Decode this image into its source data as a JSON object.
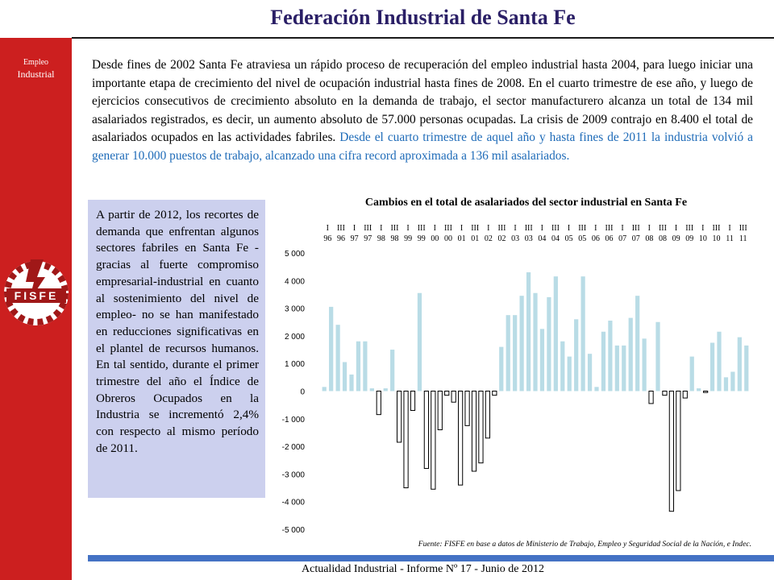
{
  "header": {
    "title": "Federación Industrial de Santa Fe"
  },
  "sidebar": {
    "label_line1": "Empleo",
    "label_line2": "Industrial",
    "logo_text": "FISFE",
    "logo_icon": "fisfe-logo-icon"
  },
  "intro": {
    "text_black": "Desde fines de 2002 Santa Fe atraviesa un rápido proceso de recuperación del empleo industrial hasta 2004, para luego iniciar una importante etapa de crecimiento del nivel de ocupación industrial hasta fines de 2008. En el cuarto trimestre de ese año, y luego de ejercicios consecutivos de crecimiento absoluto en la demanda de trabajo, el sector manufacturero alcanza un total de 134 mil asalariados registrados, es decir, un aumento absoluto de 57.000 personas ocupadas. La crisis de 2009 contrajo en 8.400 el total de asalariados ocupados en las actividades fabriles. ",
    "text_highlight": "Desde el cuarto trimestre de aquel año y hasta fines de 2011 la industria volvió a generar 10.000 puestos de trabajo, alcanzado una cifra record aproximada a 136 mil asalariados."
  },
  "sidebox": {
    "text": "A partir de 2012, los recortes de demanda que enfrentan algunos sectores fabriles en Santa Fe -gracias al fuerte compromiso empresarial-industrial en cuanto al sostenimiento del nivel de empleo- no se han manifestado en reducciones significativas en el plantel de recursos humanos. En tal sentido, durante el primer trimestre del año el Índice de Obreros Ocupados en la Industria se incrementó 2,4% con respecto al mismo período de 2011."
  },
  "footer": {
    "text": "Actualidad Industrial - Informe Nº 17 - Junio de 2012"
  },
  "colors": {
    "sidebar": "#cc1f1f",
    "title": "#2a1f66",
    "highlight": "#1e6bb8",
    "positive_bar": "#b9dce6",
    "box": "#ccd0ee",
    "footer_bar": "#4472c4"
  },
  "chart_data": {
    "type": "bar",
    "title": "Cambios en el total de asalariados del sector industrial en Santa Fe",
    "source": "Fuente: FISFE en base a datos de Ministerio de Trabajo, Empleo y Seguridad Social de la Nación, e Indec.",
    "ylim": [
      -5000,
      5000
    ],
    "yticks": [
      "5 000",
      "4 000",
      "3 000",
      "2 000",
      "1 000",
      "0",
      "-1 000",
      "-2 000",
      "-3 000",
      "-4 000",
      "-5 000"
    ],
    "ytick_values": [
      5000,
      4000,
      3000,
      2000,
      1000,
      0,
      -1000,
      -2000,
      -3000,
      -4000,
      -5000
    ],
    "top_labels": [
      {
        "q": "I",
        "y": "96"
      },
      {
        "q": "III",
        "y": "96"
      },
      {
        "q": "I",
        "y": "97"
      },
      {
        "q": "III",
        "y": "97"
      },
      {
        "q": "I",
        "y": "98"
      },
      {
        "q": "III",
        "y": "98"
      },
      {
        "q": "I",
        "y": "99"
      },
      {
        "q": "III",
        "y": "99"
      },
      {
        "q": "I",
        "y": "00"
      },
      {
        "q": "III",
        "y": "00"
      },
      {
        "q": "I",
        "y": "01"
      },
      {
        "q": "III",
        "y": "01"
      },
      {
        "q": "I",
        "y": "02"
      },
      {
        "q": "III",
        "y": "02"
      },
      {
        "q": "I",
        "y": "03"
      },
      {
        "q": "III",
        "y": "03"
      },
      {
        "q": "I",
        "y": "04"
      },
      {
        "q": "III",
        "y": "04"
      },
      {
        "q": "I",
        "y": "05"
      },
      {
        "q": "III",
        "y": "05"
      },
      {
        "q": "I",
        "y": "06"
      },
      {
        "q": "III",
        "y": "06"
      },
      {
        "q": "I",
        "y": "07"
      },
      {
        "q": "III",
        "y": "07"
      },
      {
        "q": "I",
        "y": "08"
      },
      {
        "q": "III",
        "y": "08"
      },
      {
        "q": "I",
        "y": "09"
      },
      {
        "q": "III",
        "y": "09"
      },
      {
        "q": "I",
        "y": "10"
      },
      {
        "q": "III",
        "y": "10"
      },
      {
        "q": "I",
        "y": "11"
      },
      {
        "q": "III",
        "y": "11"
      }
    ],
    "values": [
      150,
      3050,
      2400,
      1050,
      600,
      1800,
      1800,
      100,
      -850,
      100,
      1500,
      -1850,
      -3500,
      -700,
      3550,
      -2800,
      -3550,
      -1400,
      -150,
      -400,
      -3400,
      -1250,
      -2900,
      -2600,
      -1700,
      -150,
      1600,
      2750,
      2750,
      3450,
      4300,
      3550,
      2250,
      3400,
      4150,
      1800,
      1250,
      2600,
      4150,
      1350,
      150,
      2150,
      2550,
      1650,
      1650,
      2650,
      3450,
      1900,
      -450,
      2500,
      -150,
      -4350,
      -3600,
      -250,
      1250,
      100,
      -50,
      1750,
      2150,
      500,
      700,
      1950,
      1650
    ]
  }
}
